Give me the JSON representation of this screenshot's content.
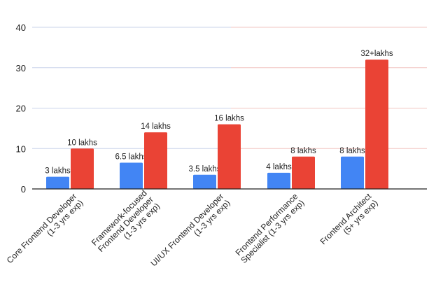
{
  "chart_data": {
    "type": "bar",
    "title": "",
    "xlabel": "",
    "ylabel": "",
    "ylim": [
      0,
      40
    ],
    "yticks": [
      0,
      10,
      20,
      30,
      40
    ],
    "grid": true,
    "legend": "none",
    "categories": [
      [
        "Core Frontend Developer",
        "(1-3 yrs exp)"
      ],
      [
        "Framework-focused",
        "Frontend Developer",
        "(1-3 yrs exp)"
      ],
      [
        "UI/UX Frontend Developer",
        "(1-3 yrs exp)"
      ],
      [
        "Frontend Performance",
        "Specialist (1-3 yrs exp)"
      ],
      [
        "Frontend Architect",
        "(5+ yrs exp)"
      ]
    ],
    "series": [
      {
        "color": "#4285f4",
        "values": [
          3,
          6.5,
          3.5,
          4,
          8
        ],
        "labels": [
          "3 lakhs",
          "6.5 lakhs",
          "3.5 lakhs",
          "4 lakhs",
          "8 lakhs"
        ]
      },
      {
        "color": "#ea4335",
        "values": [
          10,
          14,
          16,
          8,
          32
        ],
        "labels": [
          "10 lakhs",
          "14 lakhs",
          "16 lakhs",
          "8 lakhs",
          "32+lakhs"
        ]
      }
    ],
    "gridline_colors": [
      "#c9d3ea",
      "#f2c4c0"
    ]
  }
}
